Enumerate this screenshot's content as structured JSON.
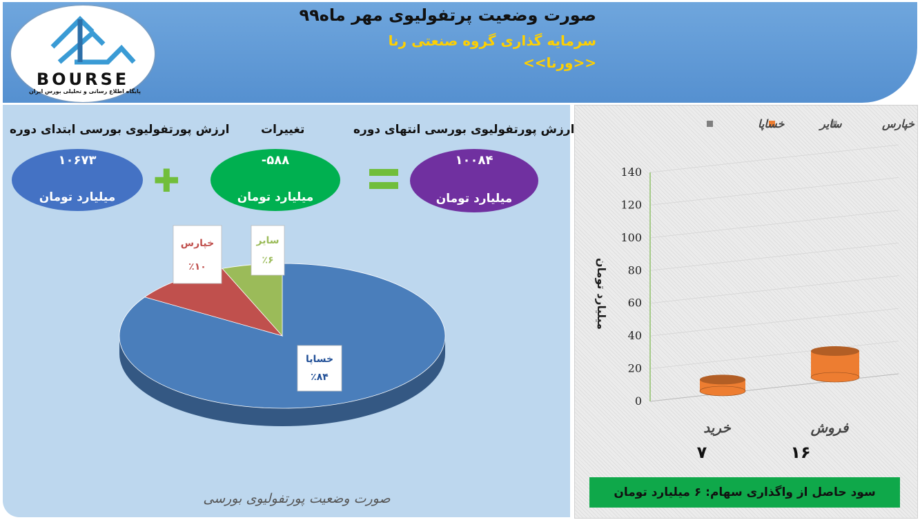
{
  "header": {
    "title": "صورت وضعیت پرتفولیوی مهر ماه۹۹",
    "subtitle": "سرمایه گذاری گروه صنعتی رنا",
    "symbol": "<<ورنا>>"
  },
  "logo": {
    "name": "BOURSE",
    "tagline": "پایگاه اطلاع رسانی و تحلیلی بورس ایران"
  },
  "summary": {
    "start": {
      "label": "ارزش پورتفولیوی بورسی ابتدای دوره",
      "value": "۱۰۶۷۳",
      "unit": "میلیارد تومان"
    },
    "change": {
      "label": "تغییرات",
      "value": "-۵۸۸",
      "unit": "میلیارد تومان"
    },
    "end": {
      "label": "ارزش پورتفولیوی بورسی انتهای دوره",
      "value": "۱۰۰۸۴",
      "unit": "میلیارد تومان"
    },
    "colors": {
      "start": "#4472c4",
      "change": "#00b050",
      "end": "#7030a0",
      "operator": "#71be3b"
    }
  },
  "chart_data": [
    {
      "type": "pie",
      "title": "",
      "categories": [
        "خساپا",
        "خپارس",
        "سایر"
      ],
      "values": [
        84,
        10,
        6
      ],
      "labels": [
        "٪۸۴",
        "٪۱۰",
        "٪۶"
      ],
      "colors": [
        "#4a7ebb",
        "#c0504d",
        "#9bbb59"
      ],
      "label_colors": [
        "#1f4e96",
        "#c0504d",
        "#9bbb59"
      ]
    },
    {
      "type": "bar",
      "title": "",
      "categories": [
        "خرید",
        "فروش"
      ],
      "category_totals": [
        "۷",
        "۱۶"
      ],
      "series": [
        {
          "name": "خپارس",
          "values": [
            0,
            0
          ],
          "color": "#a5a5a5"
        },
        {
          "name": "سایر",
          "values": [
            7,
            16
          ],
          "color": "#ed7d31"
        },
        {
          "name": "خساپا",
          "values": [
            0,
            0
          ],
          "color": "#7f7f7f"
        }
      ],
      "ylabel": "میلیارد تومان",
      "ylim": [
        0,
        140
      ],
      "yticks": [
        0,
        20,
        40,
        60,
        80,
        100,
        120,
        140
      ],
      "grid": true,
      "legend": "top"
    }
  ],
  "footer": {
    "left_caption": "صورت وضعیت پورتفولیوی بورسی",
    "right_note": "سود حاصل از واگذاری سهام: ۶  میلیارد تومان"
  }
}
